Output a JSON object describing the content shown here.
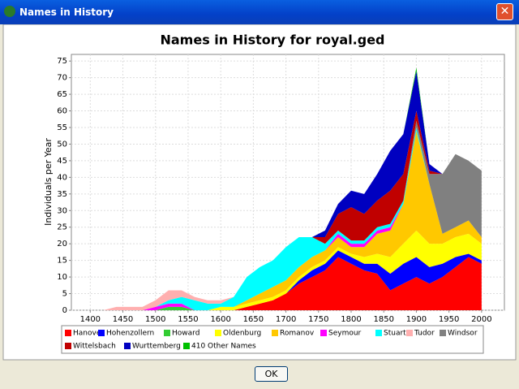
{
  "window": {
    "title": "Names in History",
    "button": "OK"
  },
  "chart_data": {
    "type": "stacked-area",
    "title": "Names in History for royal.ged",
    "y_label": "Individuals per Year",
    "x": [
      1420,
      1440,
      1460,
      1480,
      1500,
      1520,
      1540,
      1560,
      1580,
      1600,
      1620,
      1640,
      1660,
      1680,
      1700,
      1720,
      1740,
      1760,
      1780,
      1800,
      1820,
      1840,
      1860,
      1880,
      1900,
      1920,
      1940,
      1960,
      1980,
      2000
    ],
    "xlim": [
      1371,
      2035
    ],
    "xticks": [
      1400,
      1450,
      1500,
      1550,
      1600,
      1650,
      1700,
      1750,
      1800,
      1850,
      1900,
      1950,
      2000
    ],
    "ylim": [
      0,
      77
    ],
    "yticks": [
      0,
      5,
      10,
      15,
      20,
      25,
      30,
      35,
      40,
      45,
      50,
      55,
      60,
      65,
      70,
      75
    ],
    "grid": true,
    "legend": "bottom",
    "series": [
      {
        "name": "Hanover",
        "color": "#ff0000",
        "values": [
          0,
          0,
          0,
          0,
          0,
          0,
          0,
          0,
          0,
          0,
          0,
          1,
          2,
          3,
          5,
          8,
          10,
          12,
          16,
          14,
          12,
          11,
          6,
          8,
          10,
          8,
          10,
          13,
          16,
          14
        ]
      },
      {
        "name": "Hohenzollern",
        "color": "#0000ff",
        "values": [
          0,
          0,
          0,
          0,
          0,
          0,
          0,
          0,
          0,
          0,
          0,
          0,
          0,
          0,
          0,
          1,
          2,
          2,
          2,
          2,
          2,
          3,
          5,
          6,
          6,
          5,
          4,
          3,
          1,
          1
        ]
      },
      {
        "name": "Howard",
        "color": "#33cc33",
        "values": [
          0,
          0,
          0,
          0,
          0,
          1,
          1,
          0,
          0,
          0,
          0,
          0,
          0,
          0,
          0,
          0,
          0,
          0,
          0,
          0,
          0,
          0,
          0,
          0,
          0,
          0,
          0,
          0,
          0,
          0
        ]
      },
      {
        "name": "Oldenburg",
        "color": "#ffff00",
        "values": [
          0,
          0,
          0,
          0,
          0,
          0,
          0,
          0,
          0,
          1,
          1,
          1,
          1,
          1,
          1,
          1,
          1,
          1,
          1,
          1,
          2,
          3,
          5,
          6,
          8,
          7,
          6,
          6,
          6,
          5
        ]
      },
      {
        "name": "Romanov",
        "color": "#ffc800",
        "values": [
          0,
          0,
          0,
          0,
          0,
          0,
          0,
          0,
          0,
          0,
          0,
          1,
          2,
          3,
          3,
          3,
          3,
          3,
          3,
          2,
          3,
          6,
          8,
          12,
          30,
          18,
          3,
          3,
          4,
          2
        ]
      },
      {
        "name": "Seymour",
        "color": "#ff00ff",
        "values": [
          0,
          0,
          0,
          0,
          1,
          1,
          1,
          0,
          0,
          0,
          0,
          0,
          0,
          0,
          0,
          0,
          0,
          0,
          1,
          1,
          1,
          1,
          1,
          0,
          0,
          0,
          0,
          0,
          0,
          0
        ]
      },
      {
        "name": "Stuart",
        "color": "#00ffff",
        "values": [
          0,
          0,
          0,
          0,
          0,
          1,
          2,
          3,
          2,
          1,
          3,
          7,
          8,
          8,
          10,
          9,
          6,
          2,
          1,
          1,
          1,
          1,
          1,
          1,
          1,
          0,
          0,
          0,
          0,
          0
        ]
      },
      {
        "name": "Tudor",
        "color": "#ffafaf",
        "values": [
          0,
          1,
          1,
          1,
          2,
          3,
          2,
          1,
          1,
          1,
          0,
          0,
          0,
          0,
          0,
          0,
          0,
          0,
          0,
          0,
          0,
          0,
          0,
          0,
          0,
          0,
          0,
          0,
          0,
          0
        ]
      },
      {
        "name": "Windsor",
        "color": "#808080",
        "values": [
          0,
          0,
          0,
          0,
          0,
          0,
          0,
          0,
          0,
          0,
          0,
          0,
          0,
          0,
          0,
          0,
          0,
          0,
          0,
          0,
          0,
          0,
          0,
          0,
          2,
          3,
          18,
          22,
          18,
          20
        ]
      },
      {
        "name": "Wittelsbach",
        "color": "#c00000",
        "values": [
          0,
          0,
          0,
          0,
          0,
          0,
          0,
          0,
          0,
          0,
          0,
          0,
          0,
          0,
          0,
          0,
          0,
          2,
          5,
          10,
          8,
          8,
          10,
          8,
          3,
          1,
          0,
          0,
          0,
          0
        ]
      },
      {
        "name": "Wurttemberg",
        "color": "#0000c0",
        "values": [
          0,
          0,
          0,
          0,
          0,
          0,
          0,
          0,
          0,
          0,
          0,
          0,
          0,
          0,
          0,
          0,
          0,
          2,
          3,
          5,
          6,
          8,
          12,
          12,
          12,
          2,
          0,
          0,
          0,
          0
        ]
      },
      {
        "name": "410 Other Names",
        "color": "#00c000",
        "values": [
          0,
          0,
          0,
          0,
          0,
          0,
          0,
          0,
          0,
          0,
          0,
          0,
          0,
          0,
          0,
          0,
          0,
          0,
          0,
          0,
          0,
          0,
          0,
          0,
          1,
          0,
          0,
          0,
          0,
          0
        ]
      }
    ]
  }
}
